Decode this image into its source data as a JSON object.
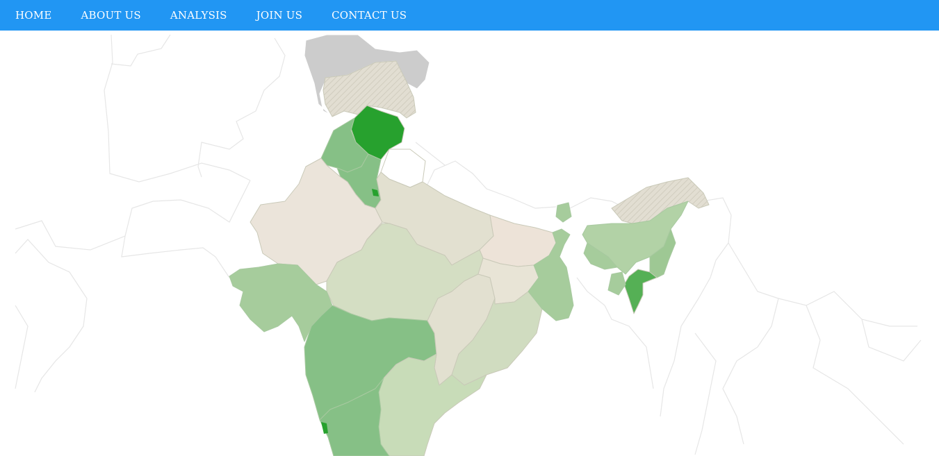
{
  "nav": {
    "items": [
      {
        "label": "HOME"
      },
      {
        "label": "ABOUT US"
      },
      {
        "label": "ANALYSIS"
      },
      {
        "label": "JOIN US"
      },
      {
        "label": "CONTACT US"
      }
    ]
  },
  "colors": {
    "nav_background": "#2196f3",
    "nav_text": "#ffffff",
    "disputed_grey": "#cccccc",
    "no_data_beige": "#ebe4da",
    "light_green": "#c8dcb8",
    "mid_green": "#86c086",
    "dark_green": "#27a12e"
  },
  "map": {
    "region": "India",
    "levels": [
      {
        "region": "Himachal Pradesh",
        "level": "highest"
      },
      {
        "region": "Manipur",
        "level": "high"
      },
      {
        "region": "Punjab",
        "level": "medium"
      },
      {
        "region": "Haryana",
        "level": "medium"
      },
      {
        "region": "Maharashtra",
        "level": "medium"
      },
      {
        "region": "Karnataka",
        "level": "medium"
      },
      {
        "region": "Gujarat",
        "level": "low"
      },
      {
        "region": "West Bengal",
        "level": "low"
      },
      {
        "region": "Assam",
        "level": "low"
      },
      {
        "region": "Meghalaya",
        "level": "low"
      },
      {
        "region": "Nagaland",
        "level": "low"
      },
      {
        "region": "Sikkim",
        "level": "low"
      },
      {
        "region": "Madhya Pradesh",
        "level": "lowest"
      },
      {
        "region": "Odisha",
        "level": "lowest"
      },
      {
        "region": "Andhra Pradesh",
        "level": "lowest"
      },
      {
        "region": "Chhattisgarh",
        "level": "lowest"
      },
      {
        "region": "Uttar Pradesh",
        "level": "lowest"
      },
      {
        "region": "Jammu and Kashmir",
        "level": "lowest"
      },
      {
        "region": "Rajasthan",
        "level": "no data"
      },
      {
        "region": "Bihar",
        "level": "no data"
      },
      {
        "region": "Jharkhand",
        "level": "no data"
      },
      {
        "region": "Arunachal Pradesh",
        "level": "no data"
      }
    ]
  }
}
